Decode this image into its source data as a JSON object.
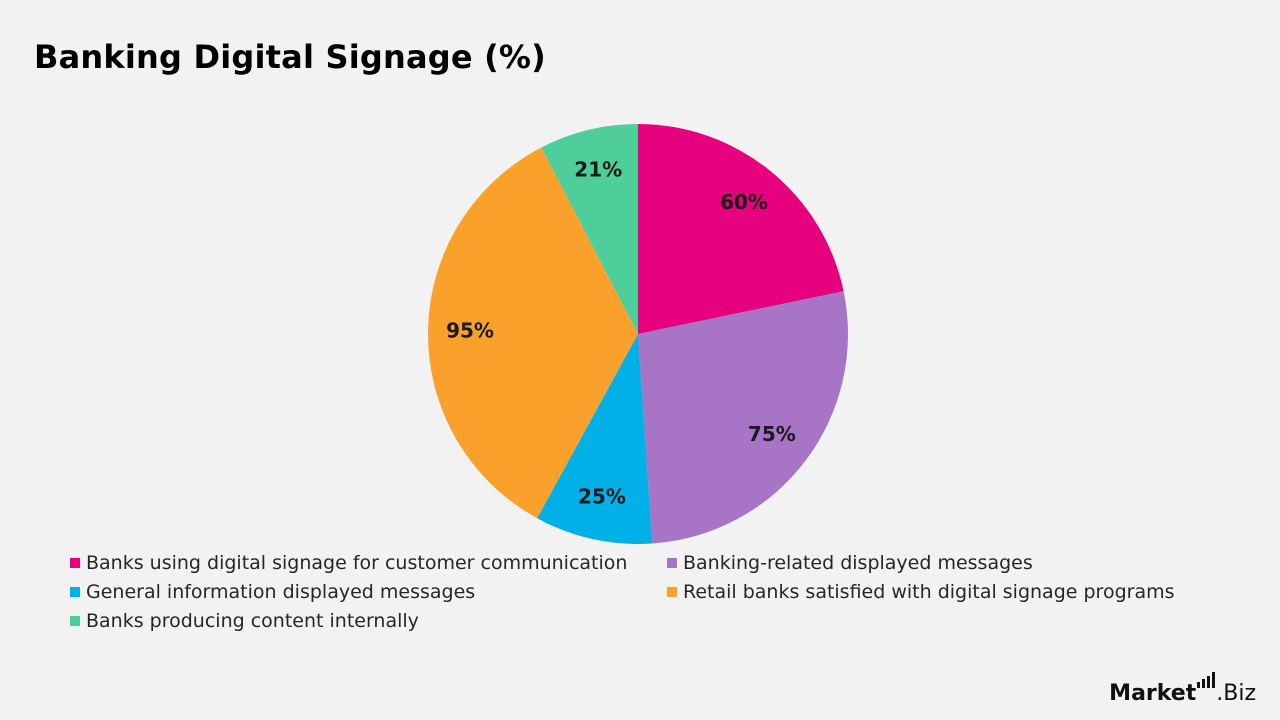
{
  "chart_data": {
    "type": "pie",
    "title": "Banking Digital Signage (%)",
    "slices": [
      {
        "name": "Banks using digital signage for customer communication",
        "value": 60,
        "label": "60%",
        "color": "#e6007e"
      },
      {
        "name": "Banking-related displayed messages",
        "value": 75,
        "label": "75%",
        "color": "#a874c6"
      },
      {
        "name": "General information displayed messages",
        "value": 25,
        "label": "25%",
        "color": "#00b0e6"
      },
      {
        "name": "Retail banks satisfied with digital signage programs",
        "value": 95,
        "label": "95%",
        "color": "#f9a12b"
      },
      {
        "name": "Banks producing content internally",
        "value": 21,
        "label": "21%",
        "color": "#4dce9a"
      }
    ],
    "legend_position": "bottom"
  },
  "branding": {
    "logo_main": "Market",
    "logo_suffix": ".Biz"
  }
}
